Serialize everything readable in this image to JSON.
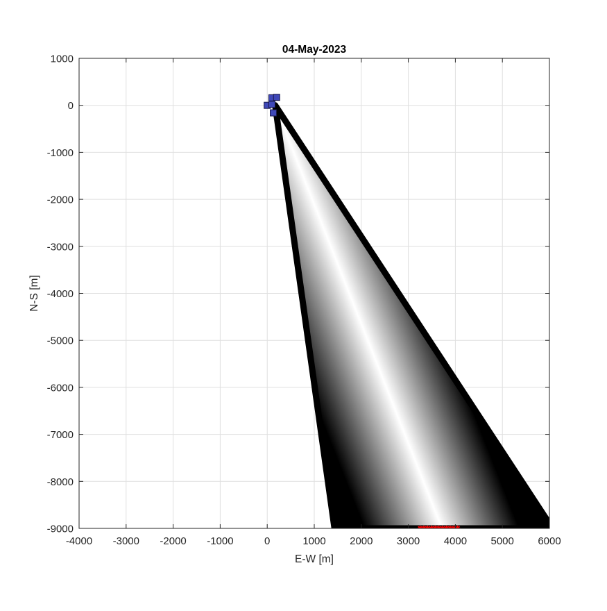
{
  "chart_data": {
    "type": "scatter",
    "title": "04-May-2023",
    "xlabel": "E-W [m]",
    "ylabel": "N-S [m]",
    "xlim": [
      -4000,
      6000
    ],
    "ylim": [
      -9000,
      1000
    ],
    "xticks": [
      -4000,
      -3000,
      -2000,
      -1000,
      0,
      1000,
      2000,
      3000,
      4000,
      5000,
      6000
    ],
    "yticks": [
      1000,
      0,
      -1000,
      -2000,
      -3000,
      -4000,
      -5000,
      -6000,
      -7000,
      -8000,
      -9000
    ],
    "xtick_labels": [
      "-4000",
      "-3000",
      "-2000",
      "-1000",
      "0",
      "1000",
      "2000",
      "3000",
      "4000",
      "5000",
      "6000"
    ],
    "ytick_labels": [
      "1000",
      "0",
      "-1000",
      "-2000",
      "-3000",
      "-4000",
      "-5000",
      "-6000",
      "-7000",
      "-8000",
      "-9000"
    ],
    "grid": true,
    "plume": {
      "description_free_shape": "wedge",
      "apex": [
        170,
        0
      ],
      "left_edge_bottom": [
        1430,
        -9000
      ],
      "right_edge_bottom": [
        6000,
        -8900
      ],
      "edge_color": "#000000",
      "center_color": "#ffffff"
    },
    "series": [
      {
        "marker": "square",
        "color": "#3f48b8",
        "points": [
          [
            0,
            0
          ],
          [
            100,
            160
          ],
          [
            200,
            170
          ],
          [
            100,
            20
          ],
          [
            130,
            -160
          ]
        ]
      },
      {
        "marker": "asterisk",
        "color": "#ff0000",
        "points": [
          [
            3250,
            -9000
          ],
          [
            3330,
            -9000
          ],
          [
            3410,
            -9000
          ],
          [
            3490,
            -9000
          ],
          [
            3570,
            -9000
          ],
          [
            3650,
            -9000
          ],
          [
            3730,
            -9000
          ],
          [
            3810,
            -9000
          ],
          [
            3890,
            -9000
          ],
          [
            3970,
            -9000
          ],
          [
            4050,
            -9000
          ]
        ]
      }
    ]
  }
}
